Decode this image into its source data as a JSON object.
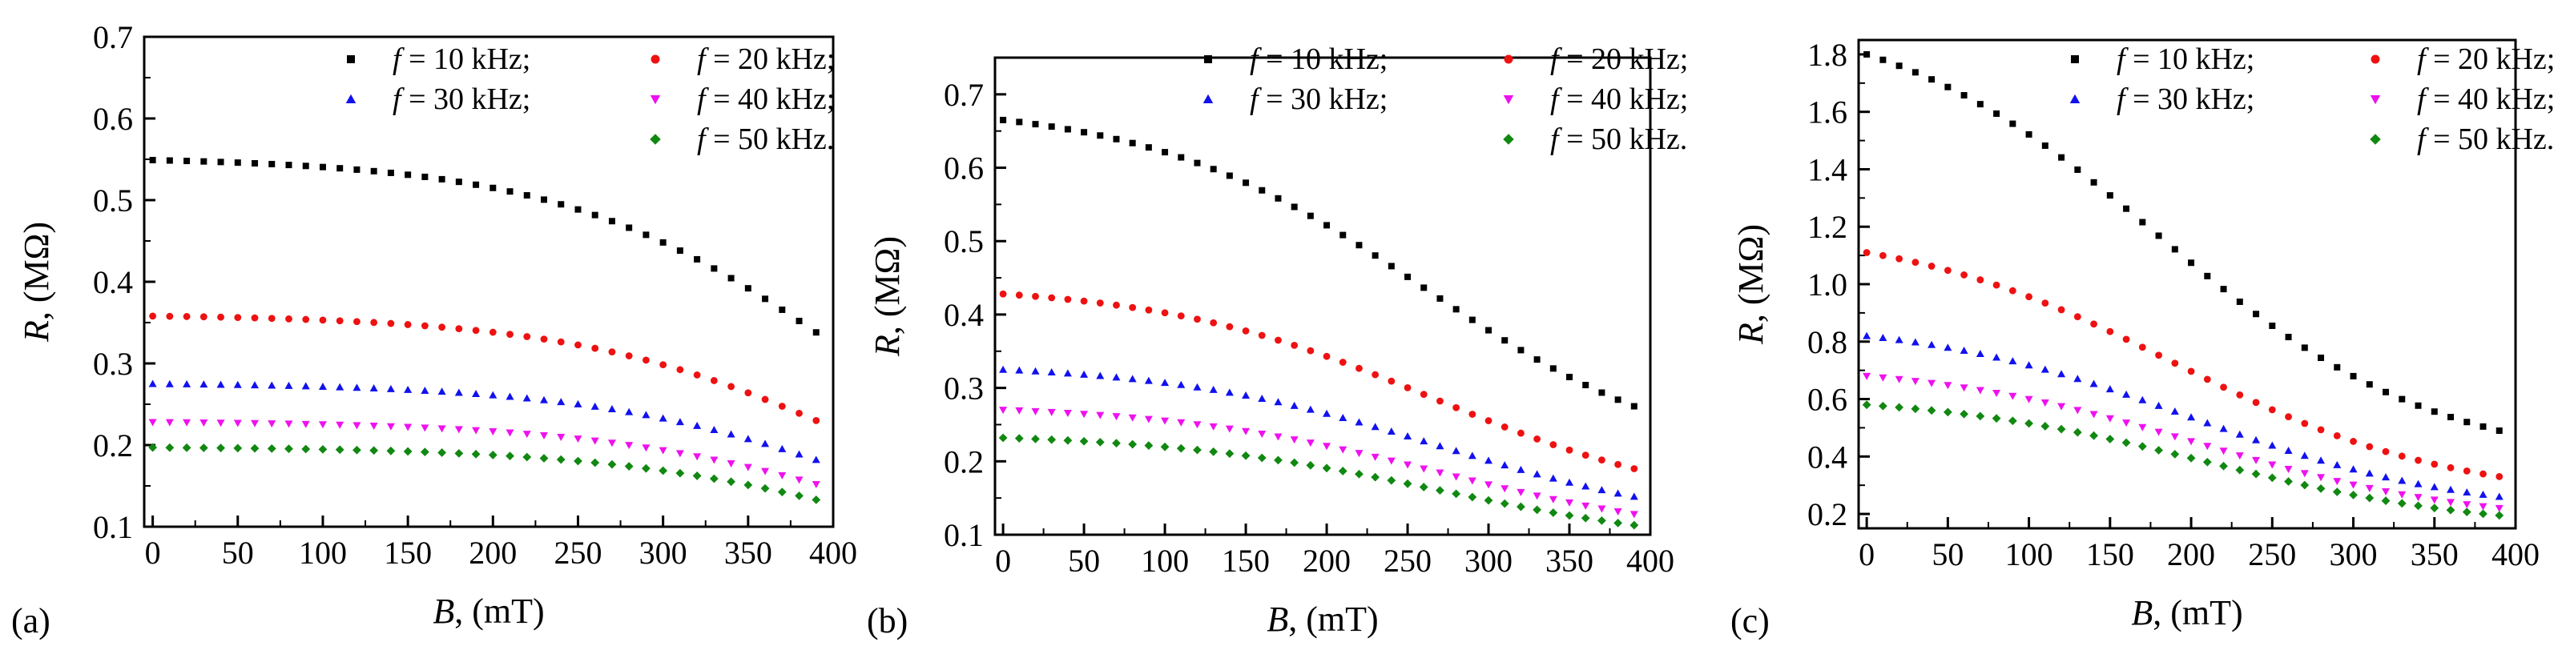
{
  "figure": {
    "panel_labels": [
      "(a)",
      "(b)",
      "(c)"
    ]
  },
  "colors": {
    "s10": "#000000",
    "s20": "#ee1111",
    "s30": "#1111ee",
    "s40": "#ee11ee",
    "s50": "#118811"
  },
  "chart_data": [
    {
      "type": "scatter",
      "panel": "(a)",
      "xlabel_var": "B",
      "xlabel_unit": ", (mT)",
      "ylabel_var": "R",
      "ylabel_unit": ", (MΩ)",
      "xlim": [
        -5,
        400
      ],
      "ylim": [
        0.1,
        0.7
      ],
      "xticks": [
        0,
        50,
        100,
        150,
        200,
        250,
        300,
        350,
        400
      ],
      "yticks": [
        0.1,
        0.2,
        0.3,
        0.4,
        0.5,
        0.6,
        0.7
      ],
      "ytick_decimals": 1,
      "x_points": {
        "start": 0,
        "stop": 390,
        "step": 10
      },
      "series": [
        {
          "prefix": "f",
          "name": " = 10 kHz;",
          "color_key": "s10",
          "marker": "square",
          "R0": 0.549,
          "R_end": 0.338,
          "B_half": 410
        },
        {
          "prefix": "f",
          "name": " = 20 kHz;",
          "color_key": "s20",
          "marker": "circle",
          "R0": 0.358,
          "R_end": 0.23,
          "B_half": 420
        },
        {
          "prefix": "f",
          "name": " = 30 kHz;",
          "color_key": "s30",
          "marker": "triangle-up",
          "R0": 0.275,
          "R_end": 0.182,
          "B_half": 430
        },
        {
          "prefix": "f",
          "name": " = 40 kHz;",
          "color_key": "s40",
          "marker": "triangle-down",
          "R0": 0.228,
          "R_end": 0.152,
          "B_half": 430
        },
        {
          "prefix": "f",
          "name": " = 50 kHz.",
          "color_key": "s50",
          "marker": "diamond",
          "R0": 0.197,
          "R_end": 0.133,
          "B_half": 440
        }
      ]
    },
    {
      "type": "scatter",
      "panel": "(b)",
      "xlabel_var": "B",
      "xlabel_unit": ", (mT)",
      "ylabel_var": "R",
      "ylabel_unit": ", (MΩ)",
      "xlim": [
        -5,
        400
      ],
      "ylim": [
        0.1,
        0.75
      ],
      "xticks": [
        0,
        50,
        100,
        150,
        200,
        250,
        300,
        350,
        400
      ],
      "yticks": [
        0.1,
        0.2,
        0.3,
        0.4,
        0.5,
        0.6,
        0.7
      ],
      "ytick_decimals": 1,
      "x_points": {
        "start": 0,
        "stop": 390,
        "step": 10
      },
      "series": [
        {
          "prefix": "f",
          "name": " = 10 kHz;",
          "color_key": "s10",
          "marker": "square",
          "R0": 0.665,
          "R_end": 0.275,
          "B_half": 260
        },
        {
          "prefix": "f",
          "name": " = 20 kHz;",
          "color_key": "s20",
          "marker": "circle",
          "R0": 0.428,
          "R_end": 0.19,
          "B_half": 265
        },
        {
          "prefix": "f",
          "name": " = 30 kHz;",
          "color_key": "s30",
          "marker": "triangle-up",
          "R0": 0.325,
          "R_end": 0.152,
          "B_half": 270
        },
        {
          "prefix": "f",
          "name": " = 40 kHz;",
          "color_key": "s40",
          "marker": "triangle-down",
          "R0": 0.27,
          "R_end": 0.128,
          "B_half": 270
        },
        {
          "prefix": "f",
          "name": " = 50 kHz.",
          "color_key": "s50",
          "marker": "diamond",
          "R0": 0.232,
          "R_end": 0.113,
          "B_half": 270
        }
      ]
    },
    {
      "type": "scatter",
      "panel": "(c)",
      "xlabel_var": "B",
      "xlabel_unit": ", (mT)",
      "ylabel_var": "R",
      "ylabel_unit": ", (MΩ)",
      "xlim": [
        -5,
        400
      ],
      "ylim": [
        0.15,
        1.85
      ],
      "xticks": [
        0,
        50,
        100,
        150,
        200,
        250,
        300,
        350,
        400
      ],
      "yticks": [
        0.2,
        0.4,
        0.6,
        0.8,
        1.0,
        1.2,
        1.4,
        1.6,
        1.8
      ],
      "ytick_decimals": 1,
      "x_points": {
        "start": 0,
        "stop": 390,
        "step": 10
      },
      "series": [
        {
          "prefix": "f",
          "name": " = 10 kHz;",
          "color_key": "s10",
          "marker": "square",
          "R0": 1.8,
          "R_end": 0.49,
          "B_half": 180
        },
        {
          "prefix": "f",
          "name": " = 20 kHz;",
          "color_key": "s20",
          "marker": "circle",
          "R0": 1.11,
          "R_end": 0.33,
          "B_half": 190
        },
        {
          "prefix": "f",
          "name": " = 30 kHz;",
          "color_key": "s30",
          "marker": "triangle-up",
          "R0": 0.82,
          "R_end": 0.26,
          "B_half": 200
        },
        {
          "prefix": "f",
          "name": " = 40 kHz;",
          "color_key": "s40",
          "marker": "triangle-down",
          "R0": 0.68,
          "R_end": 0.22,
          "B_half": 205
        },
        {
          "prefix": "f",
          "name": " = 50 kHz.",
          "color_key": "s50",
          "marker": "diamond",
          "R0": 0.58,
          "R_end": 0.195,
          "B_half": 210
        }
      ]
    }
  ]
}
